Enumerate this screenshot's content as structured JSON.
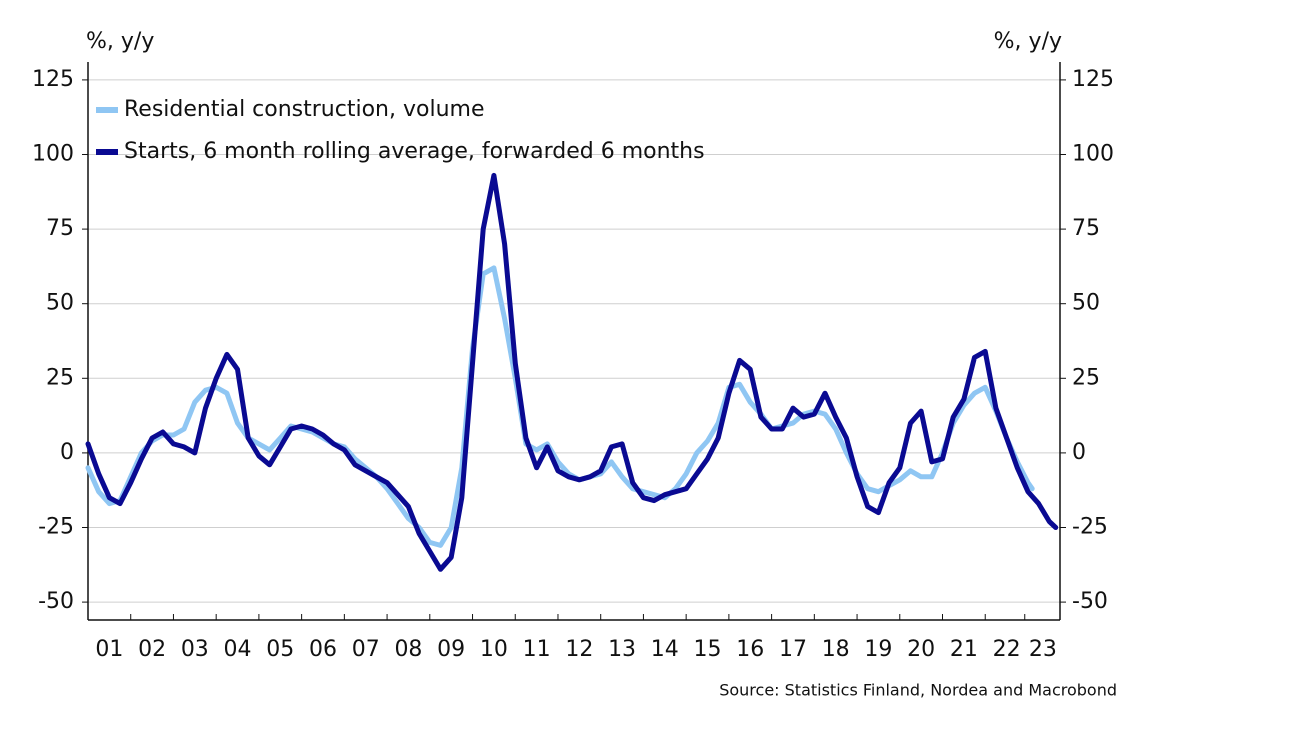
{
  "chart_data": {
    "type": "line",
    "y_label": "%, y/y",
    "y2_label": "%, y/y",
    "source": "Source: Statistics Finland, Nordea and Macrobond",
    "xlim": [
      1,
      23.75
    ],
    "xticks": [
      {
        "value": 1.5,
        "label": "01"
      },
      {
        "value": 2.5,
        "label": "02"
      },
      {
        "value": 3.5,
        "label": "03"
      },
      {
        "value": 4.5,
        "label": "04"
      },
      {
        "value": 5.5,
        "label": "05"
      },
      {
        "value": 6.5,
        "label": "06"
      },
      {
        "value": 7.5,
        "label": "07"
      },
      {
        "value": 8.5,
        "label": "08"
      },
      {
        "value": 9.5,
        "label": "09"
      },
      {
        "value": 10.5,
        "label": "10"
      },
      {
        "value": 11.5,
        "label": "11"
      },
      {
        "value": 12.5,
        "label": "12"
      },
      {
        "value": 13.5,
        "label": "13"
      },
      {
        "value": 14.5,
        "label": "14"
      },
      {
        "value": 15.5,
        "label": "15"
      },
      {
        "value": 16.5,
        "label": "16"
      },
      {
        "value": 17.5,
        "label": "17"
      },
      {
        "value": 18.5,
        "label": "18"
      },
      {
        "value": 19.5,
        "label": "19"
      },
      {
        "value": 20.5,
        "label": "20"
      },
      {
        "value": 21.5,
        "label": "21"
      },
      {
        "value": 22.5,
        "label": "22"
      },
      {
        "value": 23.35,
        "label": "23"
      }
    ],
    "ylim": [
      -56,
      131
    ],
    "yticks": [
      -50,
      -25,
      0,
      25,
      50,
      75,
      100,
      125
    ],
    "y2lim": [
      -56,
      131
    ],
    "y2ticks": [
      -50,
      -25,
      0,
      25,
      50,
      75,
      100,
      125
    ],
    "grid": true,
    "legend": "upper left",
    "series": [
      {
        "name": "Residential construction, volume",
        "color": "#8fc6f3",
        "x": [
          1.0,
          1.25,
          1.5,
          1.75,
          2.0,
          2.25,
          2.5,
          2.75,
          3.0,
          3.25,
          3.5,
          3.75,
          4.0,
          4.25,
          4.5,
          4.75,
          5.0,
          5.25,
          5.5,
          5.75,
          6.0,
          6.25,
          6.5,
          6.75,
          7.0,
          7.25,
          7.5,
          7.75,
          8.0,
          8.25,
          8.5,
          8.75,
          9.0,
          9.25,
          9.5,
          9.75,
          10.0,
          10.25,
          10.5,
          10.75,
          11.0,
          11.25,
          11.5,
          11.75,
          12.0,
          12.25,
          12.5,
          12.75,
          13.0,
          13.25,
          13.5,
          13.75,
          14.0,
          14.25,
          14.5,
          14.75,
          15.0,
          15.25,
          15.5,
          15.75,
          16.0,
          16.25,
          16.5,
          16.75,
          17.0,
          17.25,
          17.5,
          17.75,
          18.0,
          18.25,
          18.5,
          18.75,
          19.0,
          19.25,
          19.5,
          19.75,
          20.0,
          20.25,
          20.5,
          20.75,
          21.0,
          21.25,
          21.5,
          21.75,
          22.0,
          22.25,
          22.5,
          22.75,
          23.0,
          23.1
        ],
        "values": [
          -5,
          -13,
          -17,
          -16,
          -8,
          0,
          4,
          6,
          6,
          8,
          17,
          21,
          22,
          20,
          10,
          5,
          3,
          1,
          5,
          9,
          8,
          7,
          5,
          3,
          2,
          -2,
          -5,
          -8,
          -12,
          -17,
          -22,
          -25,
          -30,
          -31,
          -25,
          -5,
          35,
          60,
          62,
          45,
          25,
          3,
          1,
          3,
          -3,
          -7,
          -9,
          -8,
          -7,
          -3,
          -8,
          -12,
          -13,
          -14,
          -15,
          -12,
          -7,
          0,
          4,
          10,
          22,
          23,
          17,
          13,
          8,
          9,
          10,
          13,
          14,
          13,
          8,
          0,
          -7,
          -12,
          -13,
          -11,
          -9,
          -6,
          -8,
          -8,
          0,
          10,
          16,
          20,
          22,
          14,
          5,
          -3,
          -10,
          -12
        ]
      },
      {
        "name": "Starts, 6 month rolling average, forwarded 6 months",
        "color": "#0a0a92",
        "x": [
          1.0,
          1.25,
          1.5,
          1.75,
          2.0,
          2.25,
          2.5,
          2.75,
          3.0,
          3.25,
          3.5,
          3.75,
          4.0,
          4.25,
          4.5,
          4.75,
          5.0,
          5.25,
          5.5,
          5.75,
          6.0,
          6.25,
          6.5,
          6.75,
          7.0,
          7.25,
          7.5,
          7.75,
          8.0,
          8.25,
          8.5,
          8.75,
          9.0,
          9.25,
          9.5,
          9.75,
          10.0,
          10.25,
          10.5,
          10.75,
          11.0,
          11.25,
          11.5,
          11.75,
          12.0,
          12.25,
          12.5,
          12.75,
          13.0,
          13.25,
          13.5,
          13.75,
          14.0,
          14.25,
          14.5,
          14.75,
          15.0,
          15.25,
          15.5,
          15.75,
          16.0,
          16.25,
          16.5,
          16.75,
          17.0,
          17.25,
          17.5,
          17.75,
          18.0,
          18.25,
          18.5,
          18.75,
          19.0,
          19.25,
          19.5,
          19.75,
          20.0,
          20.25,
          20.5,
          20.75,
          21.0,
          21.25,
          21.5,
          21.75,
          22.0,
          22.25,
          22.5,
          22.75,
          23.0,
          23.25,
          23.5,
          23.65
        ],
        "values": [
          3,
          -7,
          -15,
          -17,
          -10,
          -2,
          5,
          7,
          3,
          2,
          0,
          15,
          25,
          33,
          28,
          5,
          -1,
          -4,
          2,
          8,
          9,
          8,
          6,
          3,
          1,
          -4,
          -6,
          -8,
          -10,
          -14,
          -18,
          -27,
          -33,
          -39,
          -35,
          -15,
          30,
          75,
          93,
          70,
          30,
          5,
          -5,
          2,
          -6,
          -8,
          -9,
          -8,
          -6,
          2,
          3,
          -10,
          -15,
          -16,
          -14,
          -13,
          -12,
          -7,
          -2,
          5,
          20,
          31,
          28,
          12,
          8,
          8,
          15,
          12,
          13,
          20,
          12,
          5,
          -8,
          -18,
          -20,
          -10,
          -5,
          10,
          14,
          -3,
          -2,
          12,
          18,
          32,
          34,
          15,
          5,
          -5,
          -13,
          -17,
          -23,
          -25
        ]
      }
    ]
  }
}
